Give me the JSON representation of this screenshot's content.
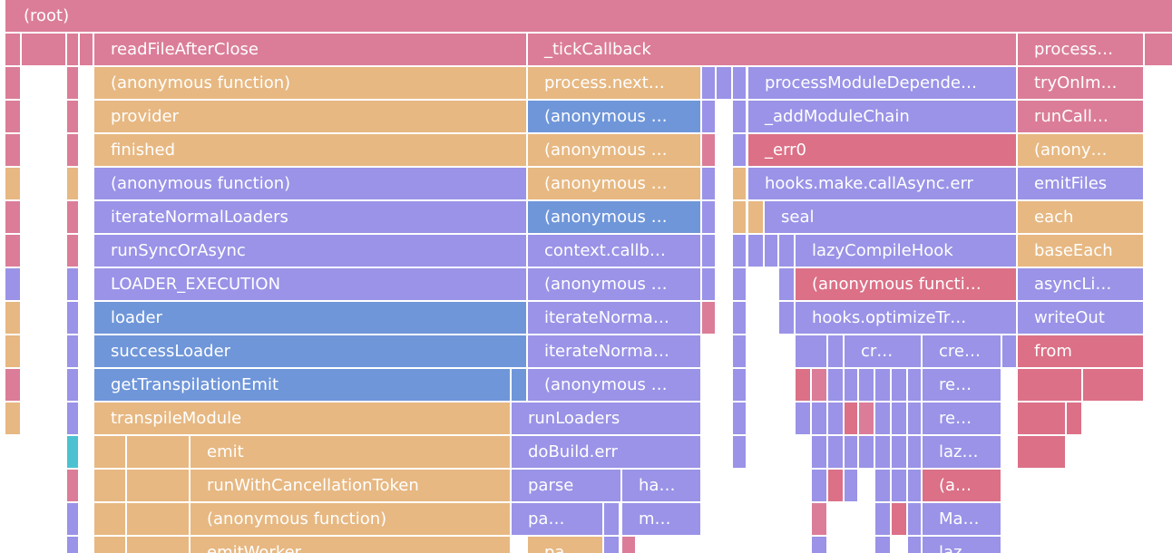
{
  "colors": {
    "pink": "#db7d98",
    "orange": "#e7b882",
    "purple": "#9a93e7",
    "blue": "#6f96d9",
    "teal": "#4cc2d1",
    "red": "#db7087"
  },
  "frames": {
    "root": "(root)",
    "readFileAfterClose": "readFileAfterClose",
    "tickCallback": "_tickCallback",
    "processTop": "process…",
    "anonFn1": "(anonymous function)",
    "processNext": "process.next…",
    "processModuleDeps": "processModuleDepende…",
    "tryOnIm": "tryOnIm…",
    "provider": "provider",
    "anon2": "(anonymous …",
    "addModuleChain": "_addModuleChain",
    "runCall": "runCall…",
    "finished": "finished",
    "anon3": "(anonymous …",
    "err0": "_err0",
    "anony": "(anony…",
    "anonFn2": "(anonymous function)",
    "anon4": "(anonymous …",
    "hooksMake": "hooks.make.callAsync.err",
    "emitFiles": "emitFiles",
    "iterateNormalLoaders": "iterateNormalLoaders",
    "anon5": "(anonymous …",
    "seal": "seal",
    "each": "each",
    "runSyncOrAsync": "runSyncOrAsync",
    "contextCallb": "context.callb…",
    "lazyCompileHook": "lazyCompileHook",
    "baseEach": "baseEach",
    "loaderExecution": "LOADER_EXECUTION",
    "anon6": "(anonymous …",
    "anonFuncti": "(anonymous functi…",
    "asyncLi": "asyncLi…",
    "loader": "loader",
    "iterateNorma1": "iterateNorma…",
    "hooksOptimize": "hooks.optimizeTr…",
    "writeOut": "writeOut",
    "successLoader": "successLoader",
    "iterateNorma2": "iterateNorma…",
    "cr": "cr…",
    "cre": "cre…",
    "from": "from",
    "getTranspilationEmit": "getTranspilationEmit",
    "anon7": "(anonymous …",
    "re1": "re…",
    "transpileModule": "transpileModule",
    "runLoaders": "runLoaders",
    "re2": "re…",
    "emit": "emit",
    "doBuildErr": "doBuild.err",
    "laz1": "laz…",
    "runWithCancellationToken": "runWithCancellationToken",
    "parse": "parse",
    "ha": "ha…",
    "a": "(a…",
    "anonFn3": "(anonymous function)",
    "pa": "pa…",
    "m": "m…",
    "ma": "Ma…",
    "emitWorker": "emitWorker",
    "pa2": "pa…",
    "laz2": "laz…"
  }
}
